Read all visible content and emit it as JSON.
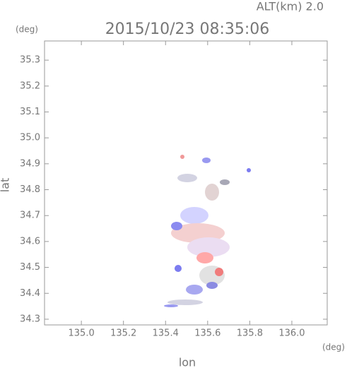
{
  "chart_data": {
    "type": "map",
    "title": "2015/10/23 08:35:06",
    "subtitle": "ALT(km) 2.0",
    "x_label": "lon",
    "y_label": "lat",
    "x_unit": "(deg)",
    "y_unit": "(deg)",
    "xlim": [
      134.825,
      136.168
    ],
    "ylim": [
      34.278,
      35.374
    ],
    "xticks": [
      {
        "value": 135,
        "label": "135.0"
      },
      135.2,
      135.4,
      135.6,
      135.8,
      {
        "value": 136,
        "label": "136.0"
      }
    ],
    "yticks": [
      34.3,
      34.4,
      34.5,
      34.6,
      34.7,
      34.8,
      34.9,
      {
        "value": 35,
        "label": "35.0"
      },
      35.1,
      35.2,
      35.3
    ]
  }
}
